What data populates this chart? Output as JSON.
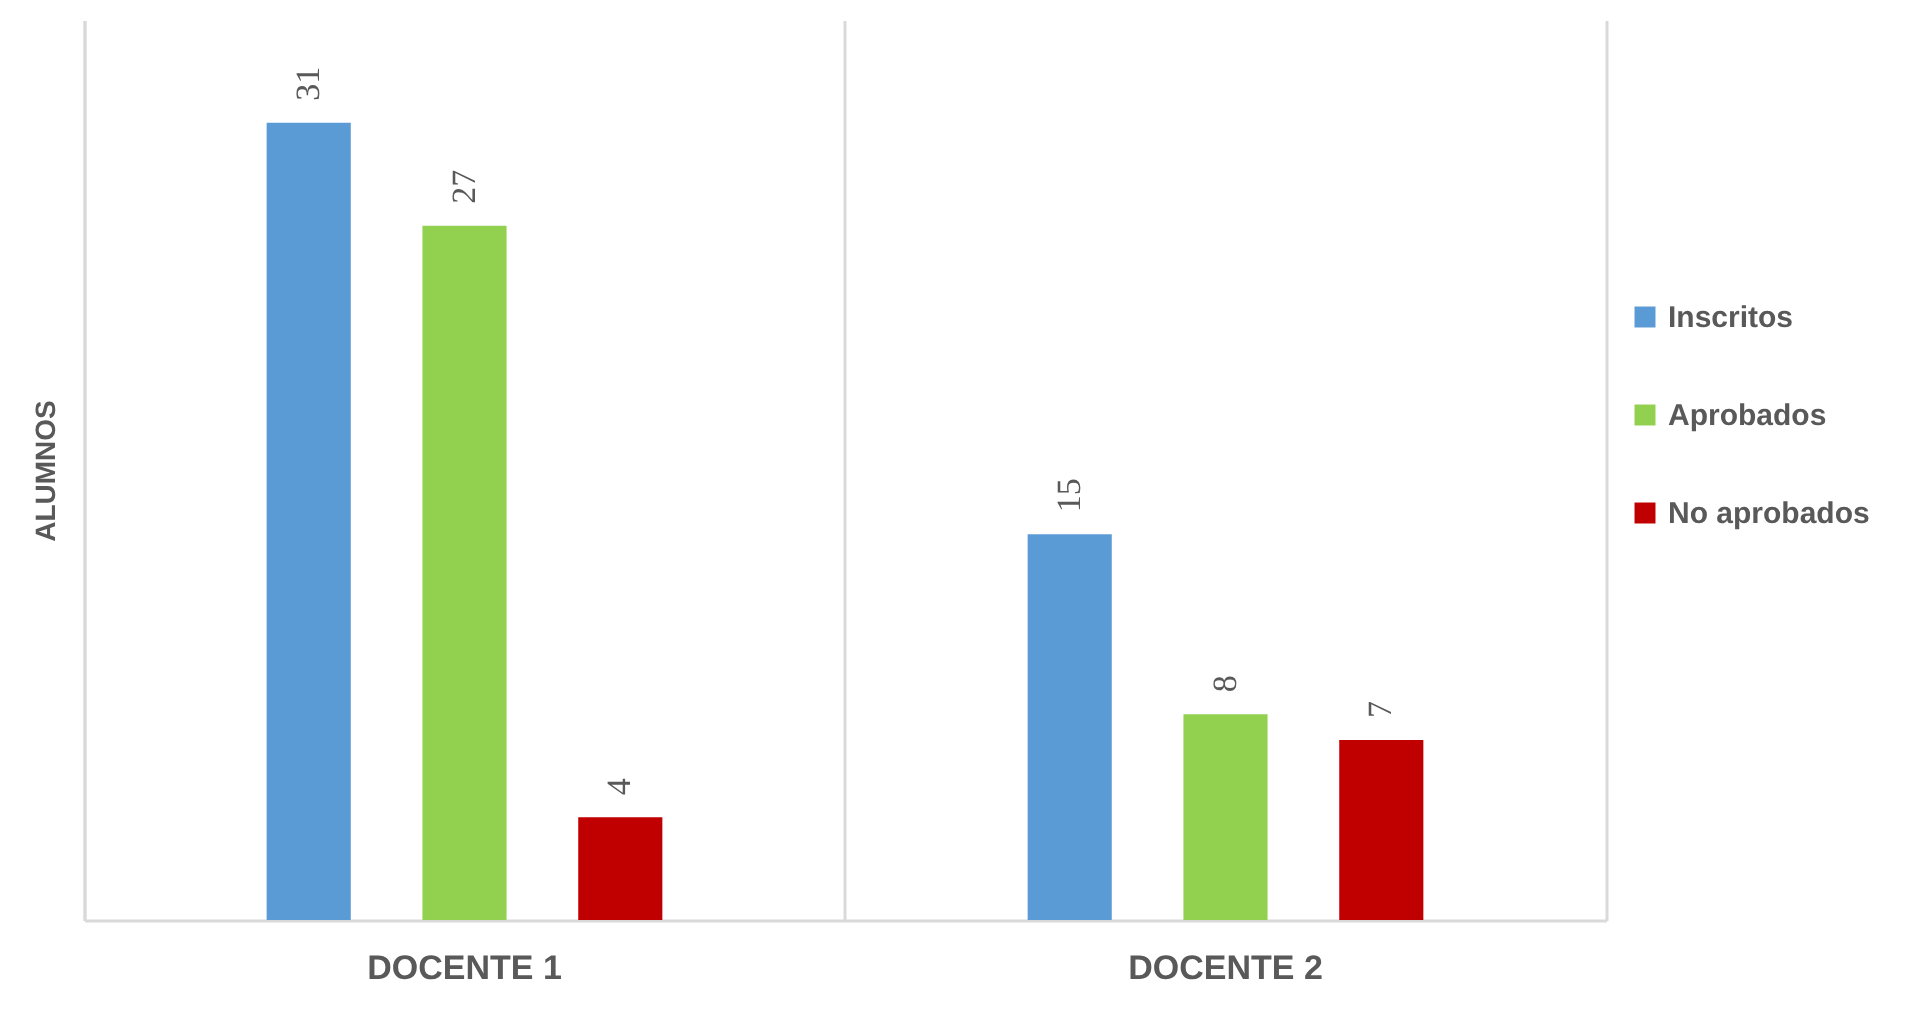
{
  "chart_data": {
    "type": "bar",
    "ylabel": "ALUMNOS",
    "categories": [
      "DOCENTE 1",
      "DOCENTE 2"
    ],
    "series": [
      {
        "name": "Inscritos",
        "color": "#5b9bd5",
        "values": [
          31,
          15
        ]
      },
      {
        "name": "Aprobados",
        "color": "#92d050",
        "values": [
          27,
          8
        ]
      },
      {
        "name": "No aprobados",
        "color": "#c00000",
        "values": [
          4,
          7
        ]
      }
    ],
    "ylim": [
      0,
      35
    ],
    "data_labels": true,
    "legend": "right",
    "grid": "x",
    "tick_labels": "x"
  }
}
